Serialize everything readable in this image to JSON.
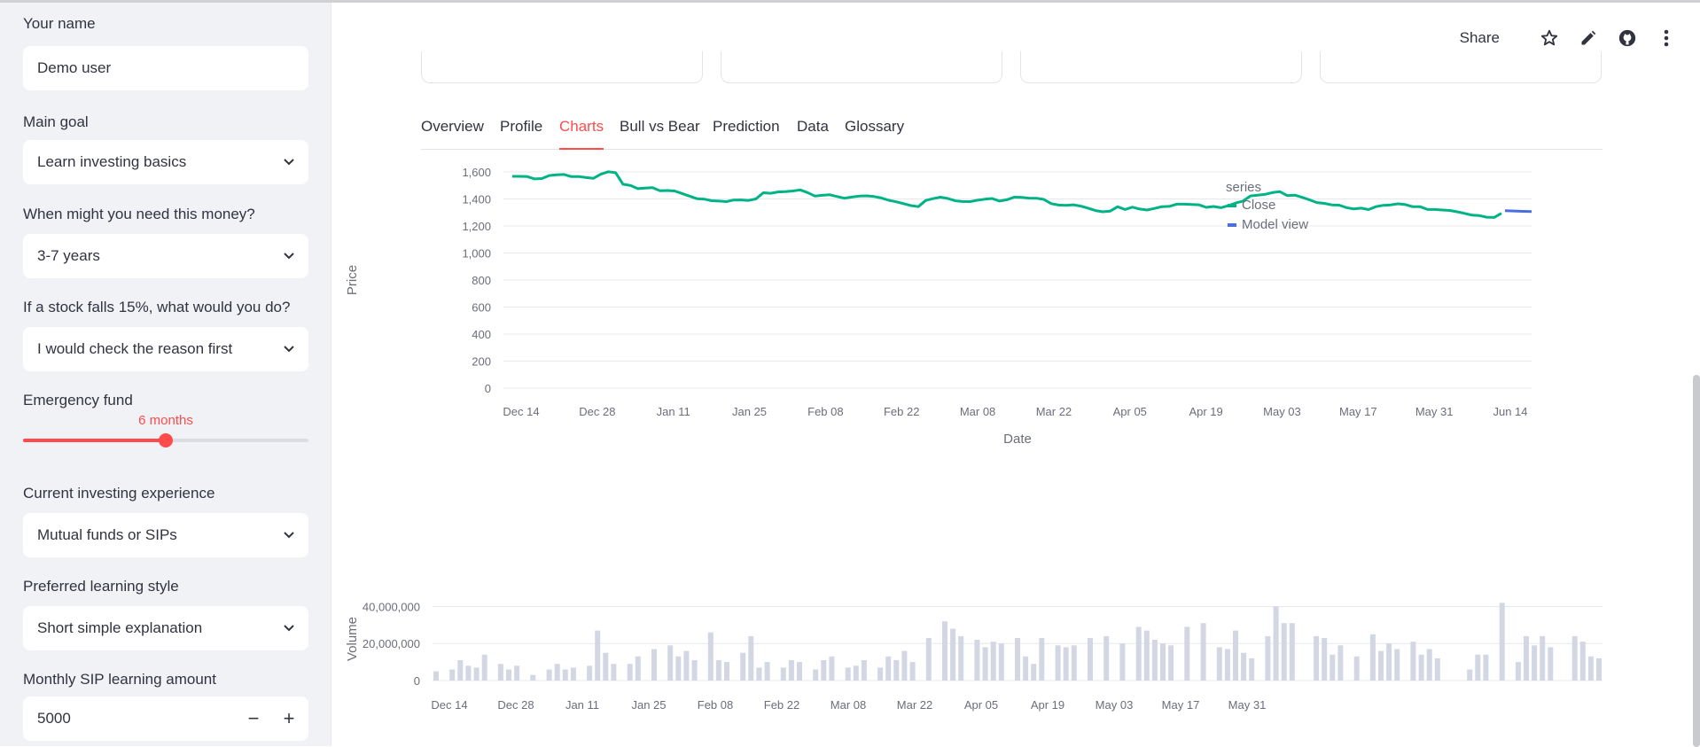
{
  "sidebar": {
    "name_label": "Your name",
    "name_value": "Demo user",
    "goal_label": "Main goal",
    "goal_value": "Learn investing basics",
    "horizon_label": "When might you need this money?",
    "horizon_value": "3-7 years",
    "reaction_label": "If a stock falls 15%, what would you do?",
    "reaction_value": "I would check the reason first",
    "emergency_label": "Emergency fund",
    "emergency_value": "6 months",
    "emergency_fraction": 0.5,
    "experience_label": "Current investing experience",
    "experience_value": "Mutual funds or SIPs",
    "style_label": "Preferred learning style",
    "style_value": "Short simple explanation",
    "sip_label": "Monthly SIP learning amount",
    "sip_value": "5000",
    "minus": "−",
    "plus": "+"
  },
  "toolbar": {
    "share": "Share",
    "icons": [
      "star-icon",
      "pencil-icon",
      "github-icon",
      "more-vert-icon"
    ]
  },
  "tabs": [
    {
      "label": "Overview",
      "active": false
    },
    {
      "label": "Profile",
      "active": false
    },
    {
      "label": "Charts",
      "active": true
    },
    {
      "label": "Bull vs Bear",
      "active": false
    },
    {
      "label": "Prediction",
      "active": false
    },
    {
      "label": "Data",
      "active": false
    },
    {
      "label": "Glossary",
      "active": false
    }
  ],
  "colors": {
    "accent": "#ff4b4b",
    "close": "#00b386",
    "model": "#4a6ee0",
    "volume": "#d3d7e3"
  },
  "chart_data": [
    {
      "type": "line",
      "xlabel": "Date",
      "ylabel": "Price",
      "ylim": [
        0,
        1600
      ],
      "yticks": [
        "0",
        "200",
        "400",
        "600",
        "800",
        "1,000",
        "1,200",
        "1,400",
        "1,600"
      ],
      "xticks": [
        "Dec 14",
        "Dec 28",
        "Jan 11",
        "Jan 25",
        "Feb 08",
        "Feb 22",
        "Mar 08",
        "Mar 22",
        "Apr 05",
        "Apr 19",
        "May 03",
        "May 17",
        "May 31",
        "Jun 14"
      ],
      "legend_title": "series",
      "legend_position": "right",
      "grid": true,
      "series": [
        {
          "name": "Close",
          "color": "#00b386",
          "values": [
            1567,
            1567,
            1566,
            1548,
            1551,
            1573,
            1579,
            1581,
            1565,
            1566,
            1558,
            1553,
            1583,
            1601,
            1594,
            1509,
            1500,
            1476,
            1480,
            1484,
            1460,
            1462,
            1459,
            1440,
            1421,
            1402,
            1399,
            1387,
            1384,
            1380,
            1392,
            1393,
            1389,
            1400,
            1446,
            1442,
            1452,
            1454,
            1459,
            1467,
            1447,
            1421,
            1427,
            1431,
            1418,
            1405,
            1414,
            1421,
            1423,
            1418,
            1407,
            1390,
            1379,
            1365,
            1351,
            1343,
            1389,
            1402,
            1413,
            1403,
            1386,
            1381,
            1380,
            1390,
            1398,
            1403,
            1384,
            1394,
            1413,
            1411,
            1406,
            1405,
            1397,
            1365,
            1355,
            1353,
            1357,
            1347,
            1332,
            1314,
            1305,
            1310,
            1342,
            1322,
            1339,
            1325,
            1318,
            1330,
            1343,
            1345,
            1361,
            1361,
            1359,
            1357,
            1338,
            1344,
            1335,
            1350,
            1370,
            1384,
            1422,
            1428,
            1434,
            1447,
            1454,
            1424,
            1428,
            1412,
            1393,
            1373,
            1367,
            1356,
            1354,
            1336,
            1326,
            1332,
            1321,
            1343,
            1353,
            1356,
            1364,
            1358,
            1342,
            1342,
            1322,
            1322,
            1318,
            1315,
            1305,
            1293,
            1280,
            1277,
            1265,
            1263,
            1294
          ]
        },
        {
          "name": "Model view",
          "color": "#4a6ee0",
          "values": [
            1313,
            1311,
            1308,
            1306
          ]
        }
      ]
    },
    {
      "type": "bar",
      "ylabel": "Volume",
      "ylim": [
        0,
        45000000
      ],
      "yticks": [
        "0",
        "20,000,000",
        "40,000,000"
      ],
      "xticks": [
        "Dec 14",
        "Dec 28",
        "Jan 11",
        "Jan 25",
        "Feb 08",
        "Feb 22",
        "Mar 08",
        "Mar 22",
        "Apr 05",
        "Apr 19",
        "May 03",
        "May 17",
        "May 31"
      ],
      "series": [
        {
          "name": "Volume",
          "color": "#d3d7e3",
          "values": [
            5,
            0,
            6,
            11,
            8,
            7,
            14,
            0,
            9,
            6,
            8,
            0,
            3,
            0,
            6,
            9,
            6,
            7,
            0,
            8,
            27,
            15,
            9,
            0,
            9,
            13,
            0,
            17,
            0,
            19,
            13,
            16,
            11,
            0,
            26,
            11,
            10,
            0,
            15,
            24,
            7,
            10,
            0,
            7,
            11,
            10,
            0,
            6,
            11,
            13,
            0,
            7,
            8,
            11,
            0,
            7,
            13,
            11,
            16,
            10,
            0,
            23,
            0,
            32,
            28,
            24,
            0,
            22,
            18,
            21,
            20,
            0,
            23,
            13,
            9,
            23,
            0,
            19,
            18,
            19,
            0,
            23,
            0,
            24,
            0,
            20,
            0,
            29,
            27,
            22,
            20,
            19,
            0,
            29,
            0,
            31,
            0,
            18,
            17,
            27,
            15,
            12,
            0,
            24,
            40,
            31,
            31,
            0,
            0,
            24,
            23,
            14,
            19,
            0,
            13,
            0,
            25,
            16,
            20,
            17,
            0,
            21,
            14,
            17,
            12,
            0,
            0,
            0,
            6,
            14,
            14,
            0,
            42,
            0,
            10,
            24,
            19,
            24,
            18,
            0,
            0,
            24,
            21,
            13,
            12
          ]
        }
      ]
    }
  ]
}
